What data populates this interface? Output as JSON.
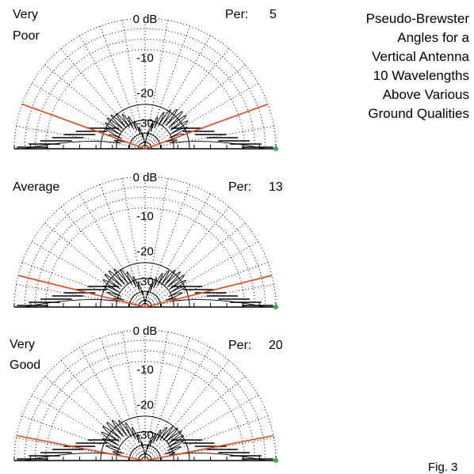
{
  "title_lines": [
    "Pseudo-Brewster",
    "Angles for a",
    "Vertical Antenna",
    "10 Wavelengths",
    "Above Various",
    "Ground Qualities"
  ],
  "figure_label": "Fig. 3",
  "colors": {
    "pattern": "#000000",
    "grid": "#000000",
    "brewster": "#e8431a",
    "marker": "#2fb34a"
  },
  "chart_data": [
    {
      "type": "polar",
      "ground_label": [
        "Very",
        "Poor"
      ],
      "per_label": "Per:",
      "per_value": 5,
      "ring_labels": [
        "0 dB",
        "-10",
        "-20",
        "-30"
      ],
      "brewster_angle_deg": 20,
      "angle_range_deg": [
        0,
        180
      ],
      "grid": true
    },
    {
      "type": "polar",
      "ground_label": [
        "Average"
      ],
      "per_label": "Per:",
      "per_value": 13,
      "ring_labels": [
        "0 dB",
        "-10",
        "-20",
        "-30"
      ],
      "brewster_angle_deg": 14,
      "angle_range_deg": [
        0,
        180
      ],
      "grid": true
    },
    {
      "type": "polar",
      "ground_label": [
        "Very",
        "Good"
      ],
      "per_label": "Per:",
      "per_value": 20,
      "ring_labels": [
        "0 dB",
        "-10",
        "-20",
        "-30"
      ],
      "brewster_angle_deg": 11,
      "angle_range_deg": [
        0,
        180
      ],
      "grid": true
    }
  ]
}
